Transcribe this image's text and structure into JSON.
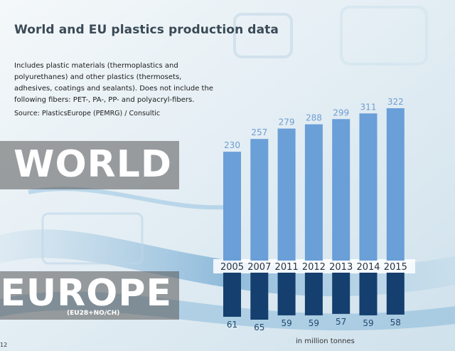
{
  "header": {
    "title": "World and EU plastics production data",
    "description": "Includes plastic materials (thermoplastics and polyurethanes) and other plastics (thermosets, adhesives, coatings and sealants). Does not include the following fibers: PET-, PA-, PP- and polyacryl-fibers.",
    "source": "Source: PlasticsEurope (PEMRG) / Consultic"
  },
  "labels": {
    "world": "WORLD",
    "europe": "EUROPE",
    "europe_sub": "(EU28+NO/CH)",
    "unit": "in million tonnes",
    "page": "12"
  },
  "colors": {
    "world_bar": "#6a9fd8",
    "europe_bar": "#143f6e",
    "band": "#555555"
  },
  "chart_data": {
    "type": "bar",
    "categories": [
      "2005",
      "2007",
      "2011",
      "2012",
      "2013",
      "2014",
      "2015"
    ],
    "series": [
      {
        "name": "WORLD",
        "values": [
          230,
          257,
          279,
          288,
          299,
          311,
          322
        ]
      },
      {
        "name": "EUROPE",
        "values": [
          61,
          65,
          59,
          59,
          57,
          59,
          58
        ]
      }
    ],
    "title": "World and EU plastics production data",
    "ylabel": "in million tonnes",
    "grid": false,
    "legend": "none"
  }
}
